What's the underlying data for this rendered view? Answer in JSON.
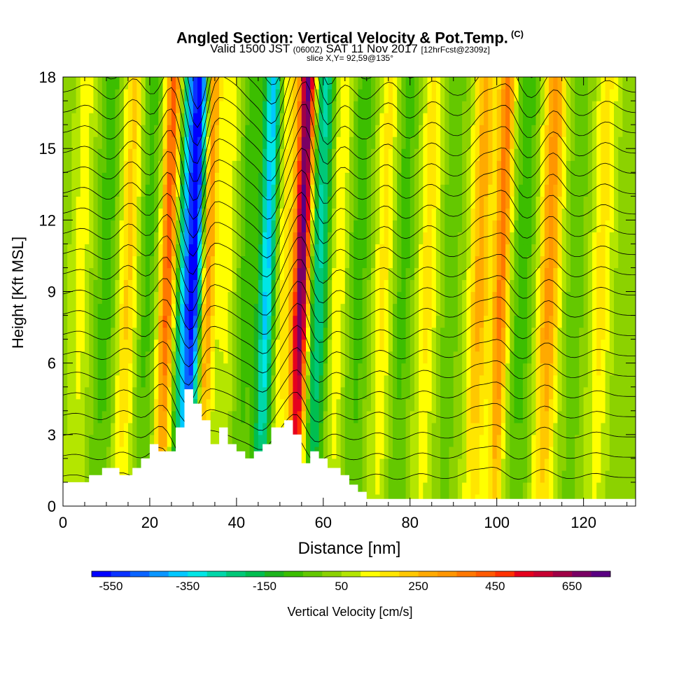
{
  "title": {
    "main": "Angled Section: Vertical Velocity & Pot.Temp.",
    "copyright": "(C)",
    "valid_prefix": "Valid 1500 JST",
    "valid_utc": "(0600Z)",
    "valid_date": "SAT 11 Nov 2017",
    "forecast": "[12hrFcst@2309z]",
    "slice": "slice X,Y= 92,59@135°"
  },
  "chart_data": {
    "type": "heatmap",
    "xlabel": "Distance [nm]",
    "ylabel": "Height [Kft MSL]",
    "xlim": [
      0,
      132
    ],
    "ylim": [
      0,
      18
    ],
    "x_ticks": [
      0,
      20,
      40,
      60,
      80,
      100,
      120
    ],
    "y_ticks": [
      0,
      3,
      6,
      9,
      12,
      15,
      18
    ],
    "colorbar": {
      "label": "Vertical Velocity [cm/s]",
      "tick_labels": [
        "-550",
        "-350",
        "-150",
        "50",
        "250",
        "450",
        "650"
      ],
      "tick_values": [
        -550,
        -350,
        -150,
        50,
        250,
        450,
        650
      ],
      "min": -600,
      "max": 750,
      "step": 50,
      "colors": [
        "#0000ff",
        "#0a32ff",
        "#0a64ff",
        "#0a96ff",
        "#00c8ff",
        "#00e6e6",
        "#00d7aa",
        "#00c878",
        "#00be50",
        "#1eb41e",
        "#3cbe00",
        "#64c800",
        "#8cd200",
        "#b4e600",
        "#ffff00",
        "#ffe600",
        "#ffc800",
        "#ffaa00",
        "#ff9600",
        "#ff7800",
        "#ff5a00",
        "#ff3200",
        "#e6001e",
        "#c80032",
        "#a00046",
        "#7a0064",
        "#5a0082"
      ]
    },
    "velocity_features": [
      {
        "x": 4,
        "value": 100
      },
      {
        "x": 10,
        "value": -100
      },
      {
        "x": 15,
        "value": 200
      },
      {
        "x": 19,
        "value": -100
      },
      {
        "x": 24,
        "value": 400
      },
      {
        "x": 28,
        "value": -350
      },
      {
        "x": 30.5,
        "value": -550
      },
      {
        "x": 33,
        "value": 350
      },
      {
        "x": 38,
        "value": 100
      },
      {
        "x": 42,
        "value": -100
      },
      {
        "x": 47,
        "value": -400
      },
      {
        "x": 51,
        "value": 150
      },
      {
        "x": 55,
        "value": 700
      },
      {
        "x": 59,
        "value": -300
      },
      {
        "x": 63,
        "value": 150
      },
      {
        "x": 68,
        "value": -100
      },
      {
        "x": 74,
        "value": 150
      },
      {
        "x": 78,
        "value": -100
      },
      {
        "x": 84,
        "value": 150
      },
      {
        "x": 89,
        "value": -50
      },
      {
        "x": 96,
        "value": 250
      },
      {
        "x": 101,
        "value": 350
      },
      {
        "x": 106,
        "value": -100
      },
      {
        "x": 112,
        "value": 300
      },
      {
        "x": 118,
        "value": -50
      },
      {
        "x": 124,
        "value": 150
      },
      {
        "x": 129,
        "value": 0
      }
    ],
    "terrain": [
      {
        "x": 0,
        "y": 1.0
      },
      {
        "x": 4,
        "y": 1.0
      },
      {
        "x": 6,
        "y": 1.3
      },
      {
        "x": 9,
        "y": 1.6
      },
      {
        "x": 13,
        "y": 1.3
      },
      {
        "x": 16,
        "y": 1.6
      },
      {
        "x": 18,
        "y": 2.0
      },
      {
        "x": 20,
        "y": 2.6
      },
      {
        "x": 22,
        "y": 2.3
      },
      {
        "x": 24,
        "y": 2.3
      },
      {
        "x": 26,
        "y": 3.3
      },
      {
        "x": 28,
        "y": 4.9
      },
      {
        "x": 30,
        "y": 4.3
      },
      {
        "x": 32,
        "y": 3.6
      },
      {
        "x": 34,
        "y": 2.6
      },
      {
        "x": 36,
        "y": 3.3
      },
      {
        "x": 38,
        "y": 2.6
      },
      {
        "x": 40,
        "y": 2.3
      },
      {
        "x": 42,
        "y": 2.0
      },
      {
        "x": 44,
        "y": 2.3
      },
      {
        "x": 46,
        "y": 2.6
      },
      {
        "x": 48,
        "y": 3.3
      },
      {
        "x": 51,
        "y": 3.6
      },
      {
        "x": 53,
        "y": 3.0
      },
      {
        "x": 55,
        "y": 1.8
      },
      {
        "x": 57,
        "y": 2.3
      },
      {
        "x": 59,
        "y": 2.0
      },
      {
        "x": 61,
        "y": 1.6
      },
      {
        "x": 64,
        "y": 1.3
      },
      {
        "x": 66,
        "y": 0.9
      },
      {
        "x": 68,
        "y": 0.6
      },
      {
        "x": 70,
        "y": 0.3
      },
      {
        "x": 132,
        "y": 0.3
      }
    ]
  }
}
